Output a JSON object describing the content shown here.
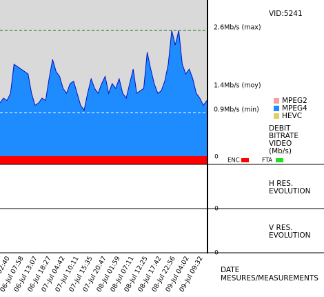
{
  "chart_data": {
    "type": "area",
    "vid": "VID:5241",
    "y_title": [
      "DEBIT",
      "BITRATE",
      "VIDEO",
      "(Mb/s)"
    ],
    "x_title": [
      "DATE",
      "MESURES/MEASUREMENTS"
    ],
    "x_labels": [
      "06-Jul 02:40",
      "06-Jul 07:58",
      "06-Jul 13:07",
      "06-Jul 18:27",
      "07-Jul 04:42",
      "07-Jul 10:11",
      "07-Jul 15:35",
      "07-Jul 20:47",
      "08-Jul 01:59",
      "08-Jul 07:11",
      "08-Jul 12:25",
      "08-Jul 17:42",
      "08-Jul 22:56",
      "09-Jul 04:02",
      "09-Jul 09:32"
    ],
    "ylim": [
      0,
      3.23
    ],
    "yticks": [
      0
    ],
    "series": [
      {
        "name": "MPEG2",
        "color": "#f4a0a0",
        "values": []
      },
      {
        "name": "MPEG4",
        "color": "#1e8cff",
        "values": [
          1.1,
          1.2,
          1.15,
          1.3,
          1.9,
          1.85,
          1.8,
          1.75,
          1.7,
          1.3,
          1.05,
          1.1,
          1.2,
          1.15,
          1.6,
          2.0,
          1.75,
          1.65,
          1.4,
          1.3,
          1.5,
          1.55,
          1.3,
          1.05,
          0.95,
          1.3,
          1.6,
          1.4,
          1.3,
          1.5,
          1.65,
          1.3,
          1.5,
          1.4,
          1.6,
          1.3,
          1.2,
          1.5,
          1.8,
          1.3,
          1.35,
          1.4,
          2.15,
          1.8,
          1.5,
          1.3,
          1.35,
          1.55,
          1.9,
          2.6,
          2.3,
          2.6,
          1.9,
          1.7,
          1.8,
          1.6,
          1.3,
          1.2,
          1.05,
          1.15
        ]
      },
      {
        "name": "HEVC",
        "color": "#e0d060",
        "values": []
      }
    ],
    "reference_lines": [
      {
        "value": 2.6,
        "label": "2.6Mb/s (max)",
        "color": "#1a7a1a"
      },
      {
        "value": 1.4,
        "label": "1.4Mb/s (moy)",
        "color": "#e00000"
      },
      {
        "value": 0.9,
        "label": "0.9Mb/s (min)",
        "color": "#3030d0"
      }
    ],
    "flags": [
      {
        "label": "ENC",
        "color": "#ff0000"
      },
      {
        "label": "FTA",
        "color": "#22dd22"
      }
    ],
    "panels": [
      {
        "label": [
          "H RES.",
          "EVOLUTION"
        ],
        "yticks": [
          0
        ]
      },
      {
        "label": [
          "V RES.",
          "EVOLUTION"
        ],
        "yticks": [
          0
        ]
      }
    ]
  }
}
